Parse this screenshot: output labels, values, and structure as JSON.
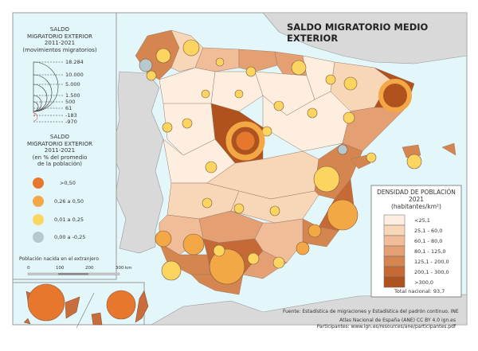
{
  "title": "SALDO MIGRATORIO MEDIO EXTERIOR",
  "legend_absolute": {
    "title_lines": [
      "SALDO",
      "MIGRATORIO EXTERIOR",
      "2011-2021",
      "(movimientos migratorios)"
    ],
    "values": [
      "18.284",
      "10.000",
      "5.000",
      "1.500",
      "500",
      "61",
      "-183",
      "-970"
    ]
  },
  "legend_relative": {
    "title_lines": [
      "SALDO",
      "MIGRATORIO EXTERIOR",
      "2011-2021",
      "(en % del promedio",
      "de la población)"
    ],
    "classes": [
      {
        "label": ">0,50",
        "color": "#e8772e"
      },
      {
        "label": "0,26 a 0,50",
        "color": "#f3a845"
      },
      {
        "label": "0,01 a 0,25",
        "color": "#fcd560"
      },
      {
        "label": "0,00 a -0,25",
        "color": "#b7c9cf"
      }
    ]
  },
  "foreign_born_label": "Población nacida en el extranjero",
  "scale_bar": {
    "ticks": [
      "0",
      "100",
      "200",
      "300"
    ],
    "unit": "km"
  },
  "legend_density": {
    "title_lines": [
      "DENSIDAD DE POBLACIÓN",
      "2021",
      "(habitantes/km²)"
    ],
    "classes": [
      {
        "label": "<25,1",
        "color": "#fdeee0"
      },
      {
        "label": "25,1 - 60,0",
        "color": "#f8d6b8"
      },
      {
        "label": "60,1 - 80,0",
        "color": "#f0bd98"
      },
      {
        "label": "80,1 - 125,0",
        "color": "#e4a073"
      },
      {
        "label": "125,1 - 200,0",
        "color": "#d5854f"
      },
      {
        "label": "200,1 - 300,0",
        "color": "#c56a36"
      },
      {
        "label": ">300,0",
        "color": "#b0521d"
      }
    ],
    "total": "Total nacional: 93,7"
  },
  "source": "Fuente: Estadística de migraciones y Estadística del padrón continuo. INE",
  "credit": "Atlas Nacional de España (ANE) CC BY 4.0 ign.es",
  "participants": "Participantes: www.ign.es/resources/ane/participantes.pdf",
  "colors": {
    "sea": "#e3f6fa",
    "neighbours": "#d9d9d9",
    "border": "#8a6a55"
  }
}
